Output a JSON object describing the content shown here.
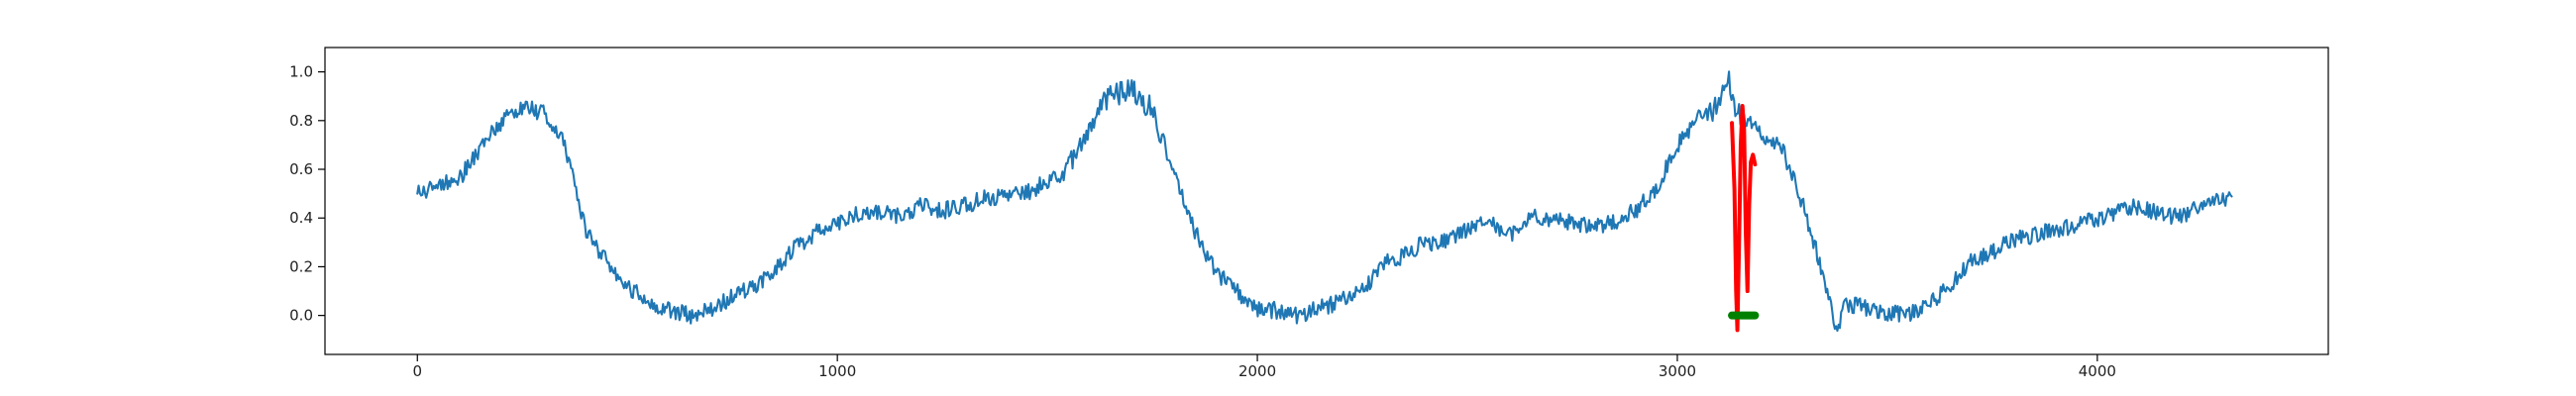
{
  "chart_data": {
    "type": "line",
    "title": "",
    "xlabel": "",
    "ylabel": "",
    "xlim": [
      -220,
      4550
    ],
    "ylim": [
      -0.16,
      1.1
    ],
    "x_ticks": [
      0,
      1000,
      2000,
      3000,
      4000
    ],
    "y_ticks": [
      0.0,
      0.2,
      0.4,
      0.6,
      0.8,
      1.0
    ],
    "x_tick_labels": [
      "0",
      "1000",
      "2000",
      "3000",
      "4000"
    ],
    "y_tick_labels": [
      "0.0",
      "0.2",
      "0.4",
      "0.6",
      "0.8",
      "1.0"
    ],
    "grid": false,
    "legend": "none",
    "series": [
      {
        "color": "#1f77b4",
        "style": "line",
        "points": [
          [
            0,
            0.5
          ],
          [
            50,
            0.53
          ],
          [
            100,
            0.56
          ],
          [
            150,
            0.69
          ],
          [
            200,
            0.79
          ],
          [
            250,
            0.86
          ],
          [
            300,
            0.83
          ],
          [
            350,
            0.71
          ],
          [
            400,
            0.35
          ],
          [
            450,
            0.22
          ],
          [
            500,
            0.12
          ],
          [
            550,
            0.06
          ],
          [
            600,
            0.02
          ],
          [
            650,
            0.0
          ],
          [
            700,
            0.02
          ],
          [
            750,
            0.08
          ],
          [
            800,
            0.12
          ],
          [
            850,
            0.18
          ],
          [
            900,
            0.28
          ],
          [
            950,
            0.34
          ],
          [
            1000,
            0.37
          ],
          [
            1050,
            0.42
          ],
          [
            1100,
            0.43
          ],
          [
            1150,
            0.41
          ],
          [
            1200,
            0.45
          ],
          [
            1250,
            0.43
          ],
          [
            1300,
            0.45
          ],
          [
            1350,
            0.48
          ],
          [
            1400,
            0.49
          ],
          [
            1450,
            0.5
          ],
          [
            1500,
            0.55
          ],
          [
            1550,
            0.6
          ],
          [
            1600,
            0.78
          ],
          [
            1650,
            0.91
          ],
          [
            1700,
            0.92
          ],
          [
            1750,
            0.85
          ],
          [
            1800,
            0.59
          ],
          [
            1850,
            0.35
          ],
          [
            1900,
            0.18
          ],
          [
            1950,
            0.1
          ],
          [
            2000,
            0.03
          ],
          [
            2050,
            0.02
          ],
          [
            2100,
            0.0
          ],
          [
            2150,
            0.03
          ],
          [
            2200,
            0.06
          ],
          [
            2250,
            0.1
          ],
          [
            2300,
            0.21
          ],
          [
            2350,
            0.25
          ],
          [
            2400,
            0.3
          ],
          [
            2450,
            0.3
          ],
          [
            2500,
            0.35
          ],
          [
            2550,
            0.38
          ],
          [
            2600,
            0.33
          ],
          [
            2650,
            0.41
          ],
          [
            2700,
            0.4
          ],
          [
            2750,
            0.38
          ],
          [
            2800,
            0.36
          ],
          [
            2850,
            0.38
          ],
          [
            2900,
            0.43
          ],
          [
            2950,
            0.52
          ],
          [
            3000,
            0.7
          ],
          [
            3050,
            0.81
          ],
          [
            3100,
            0.86
          ],
          [
            3120,
            0.98
          ],
          [
            3140,
            0.84
          ],
          [
            3200,
            0.74
          ],
          [
            3250,
            0.68
          ],
          [
            3300,
            0.45
          ],
          [
            3350,
            0.15
          ],
          [
            3380,
            -0.07
          ],
          [
            3400,
            0.05
          ],
          [
            3450,
            0.03
          ],
          [
            3500,
            0.01
          ],
          [
            3550,
            0.0
          ],
          [
            3600,
            0.05
          ],
          [
            3650,
            0.12
          ],
          [
            3700,
            0.22
          ],
          [
            3750,
            0.26
          ],
          [
            3800,
            0.31
          ],
          [
            3850,
            0.33
          ],
          [
            3900,
            0.35
          ],
          [
            3950,
            0.37
          ],
          [
            4000,
            0.4
          ],
          [
            4050,
            0.43
          ],
          [
            4100,
            0.45
          ],
          [
            4150,
            0.42
          ],
          [
            4200,
            0.4
          ],
          [
            4250,
            0.46
          ],
          [
            4300,
            0.48
          ],
          [
            4320,
            0.5
          ]
        ]
      },
      {
        "color": "#ff0000",
        "style": "line",
        "points": [
          [
            3130,
            0.79
          ],
          [
            3136,
            0.52
          ],
          [
            3140,
            0.1
          ],
          [
            3143,
            -0.06
          ],
          [
            3147,
            0.3
          ],
          [
            3151,
            0.7
          ],
          [
            3155,
            0.86
          ],
          [
            3159,
            0.76
          ],
          [
            3163,
            0.34
          ],
          [
            3167,
            0.1
          ],
          [
            3171,
            0.45
          ],
          [
            3175,
            0.63
          ],
          [
            3180,
            0.66
          ],
          [
            3185,
            0.62
          ]
        ]
      },
      {
        "color": "#008000",
        "style": "thick-segment",
        "points": [
          [
            3130,
            0.0
          ],
          [
            3185,
            0.0
          ]
        ]
      }
    ]
  }
}
